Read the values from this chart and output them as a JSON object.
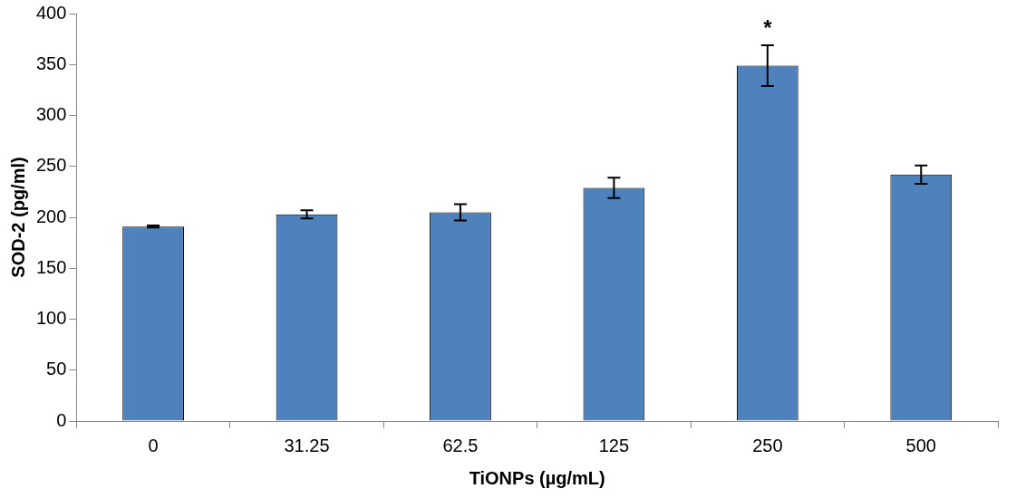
{
  "chart_data": {
    "type": "bar",
    "xlabel": "TiONPs (µg/mL)",
    "ylabel": "SOD-2 (pg/ml)",
    "categories": [
      "0",
      "31.25",
      "62.5",
      "125",
      "250",
      "500"
    ],
    "values": [
      191,
      203,
      205,
      229,
      349,
      242
    ],
    "errors": [
      1,
      4,
      8,
      10,
      20,
      9
    ],
    "color": "#4f81bd",
    "ylim": [
      0,
      400
    ],
    "yticks": [
      0,
      50,
      100,
      150,
      200,
      250,
      300,
      350,
      400
    ],
    "grid": false,
    "legend": false,
    "annotations": [
      "*"
    ]
  }
}
